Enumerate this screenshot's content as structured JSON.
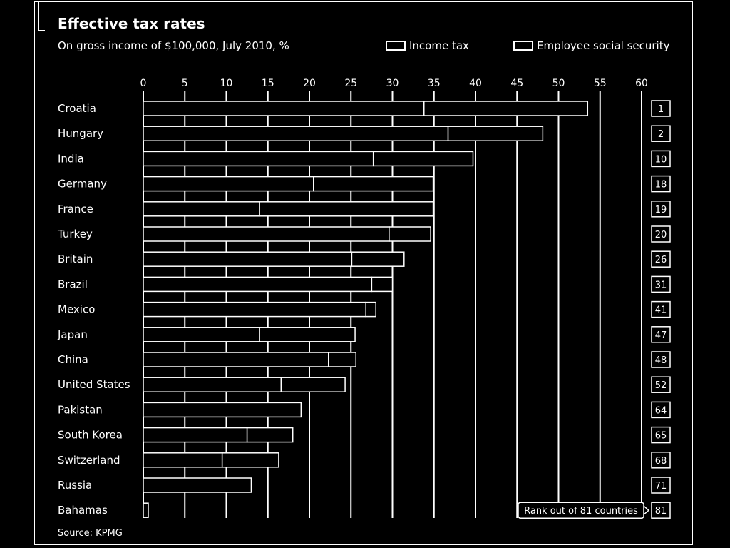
{
  "chart_data": {
    "type": "bar",
    "stacked": true,
    "orientation": "horizontal",
    "title": "Effective tax rates",
    "subtitle": "On gross income of $100,000, July 2010, %",
    "source": "Source: KPMG",
    "rank_note": "Rank out of 81 countries",
    "xlim": [
      0,
      60
    ],
    "xticks": [
      "0",
      "5",
      "10",
      "15",
      "20",
      "25",
      "30",
      "35",
      "40",
      "45",
      "50",
      "55",
      "60"
    ],
    "grid": true,
    "legend_position": "top-right",
    "categories": [
      "Croatia",
      "Hungary",
      "India",
      "Germany",
      "France",
      "Turkey",
      "Britain",
      "Brazil",
      "Mexico",
      "Japan",
      "China",
      "United States",
      "Pakistan",
      "South Korea",
      "Switzerland",
      "Russia",
      "Bahamas"
    ],
    "ranks": [
      "1",
      "2",
      "10",
      "18",
      "19",
      "20",
      "26",
      "31",
      "41",
      "47",
      "48",
      "52",
      "64",
      "65",
      "68",
      "71",
      "81"
    ],
    "series": [
      {
        "name": "Income tax",
        "values": [
          33.8,
          36.7,
          27.7,
          20.5,
          14.0,
          29.6,
          25.1,
          27.5,
          26.8,
          14.0,
          22.3,
          16.6,
          19.0,
          12.5,
          9.5,
          13.0,
          0.6
        ]
      },
      {
        "name": "Employee social security",
        "values": [
          19.7,
          11.4,
          12.0,
          14.4,
          20.9,
          5.0,
          6.3,
          2.5,
          1.2,
          11.5,
          3.3,
          7.7,
          0.0,
          5.5,
          6.8,
          0.0,
          0.0
        ]
      }
    ]
  },
  "colors": {
    "background": "#000000",
    "bar": "#000000",
    "line": "#ffffff"
  }
}
